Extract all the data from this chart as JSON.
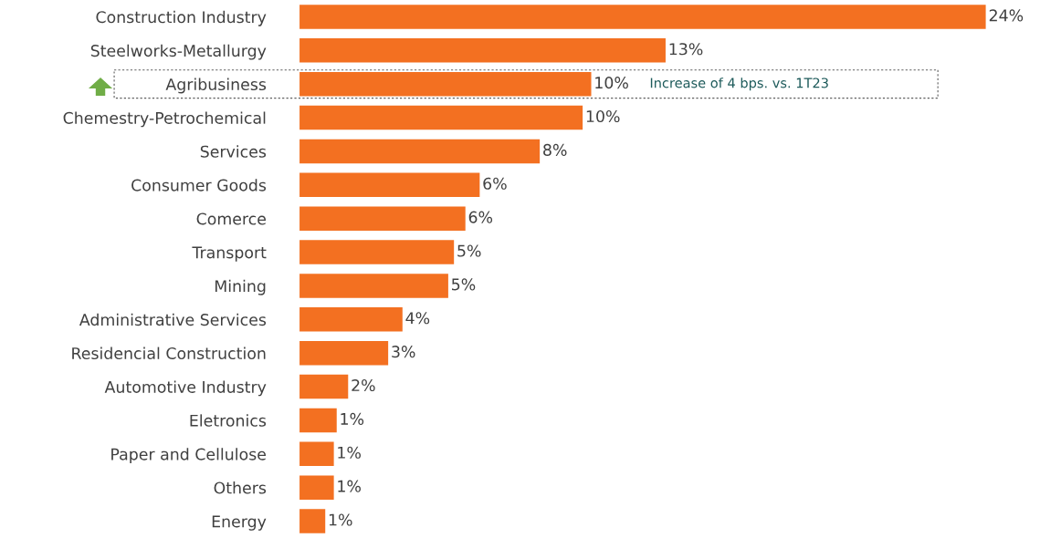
{
  "chart_data": {
    "type": "bar",
    "orientation": "horizontal",
    "categories": [
      "Construction Industry",
      "Steelworks-Metallurgy",
      "Agribusiness",
      "Chemestry-Petrochemical",
      "Services",
      "Consumer Goods",
      "Comerce",
      "Transport",
      "Mining",
      "Administrative Services",
      "Residencial Construction",
      "Automotive Industry",
      "Eletronics",
      "Paper and Cellulose",
      "Others",
      "Energy"
    ],
    "values": [
      24,
      12.8,
      10.2,
      9.9,
      8.4,
      6.3,
      5.8,
      5.4,
      5.2,
      3.6,
      3.1,
      1.7,
      1.3,
      1.2,
      1.2,
      0.9
    ],
    "value_labels": [
      "24%",
      "13%",
      "10%",
      "10%",
      "8%",
      "6%",
      "6%",
      "5%",
      "5%",
      "4%",
      "3%",
      "2%",
      "1%",
      "1%",
      "1%",
      "1%"
    ],
    "color": "#f37021",
    "annotations": [
      "Increase of 4 bps. vs. 1T23"
    ]
  }
}
